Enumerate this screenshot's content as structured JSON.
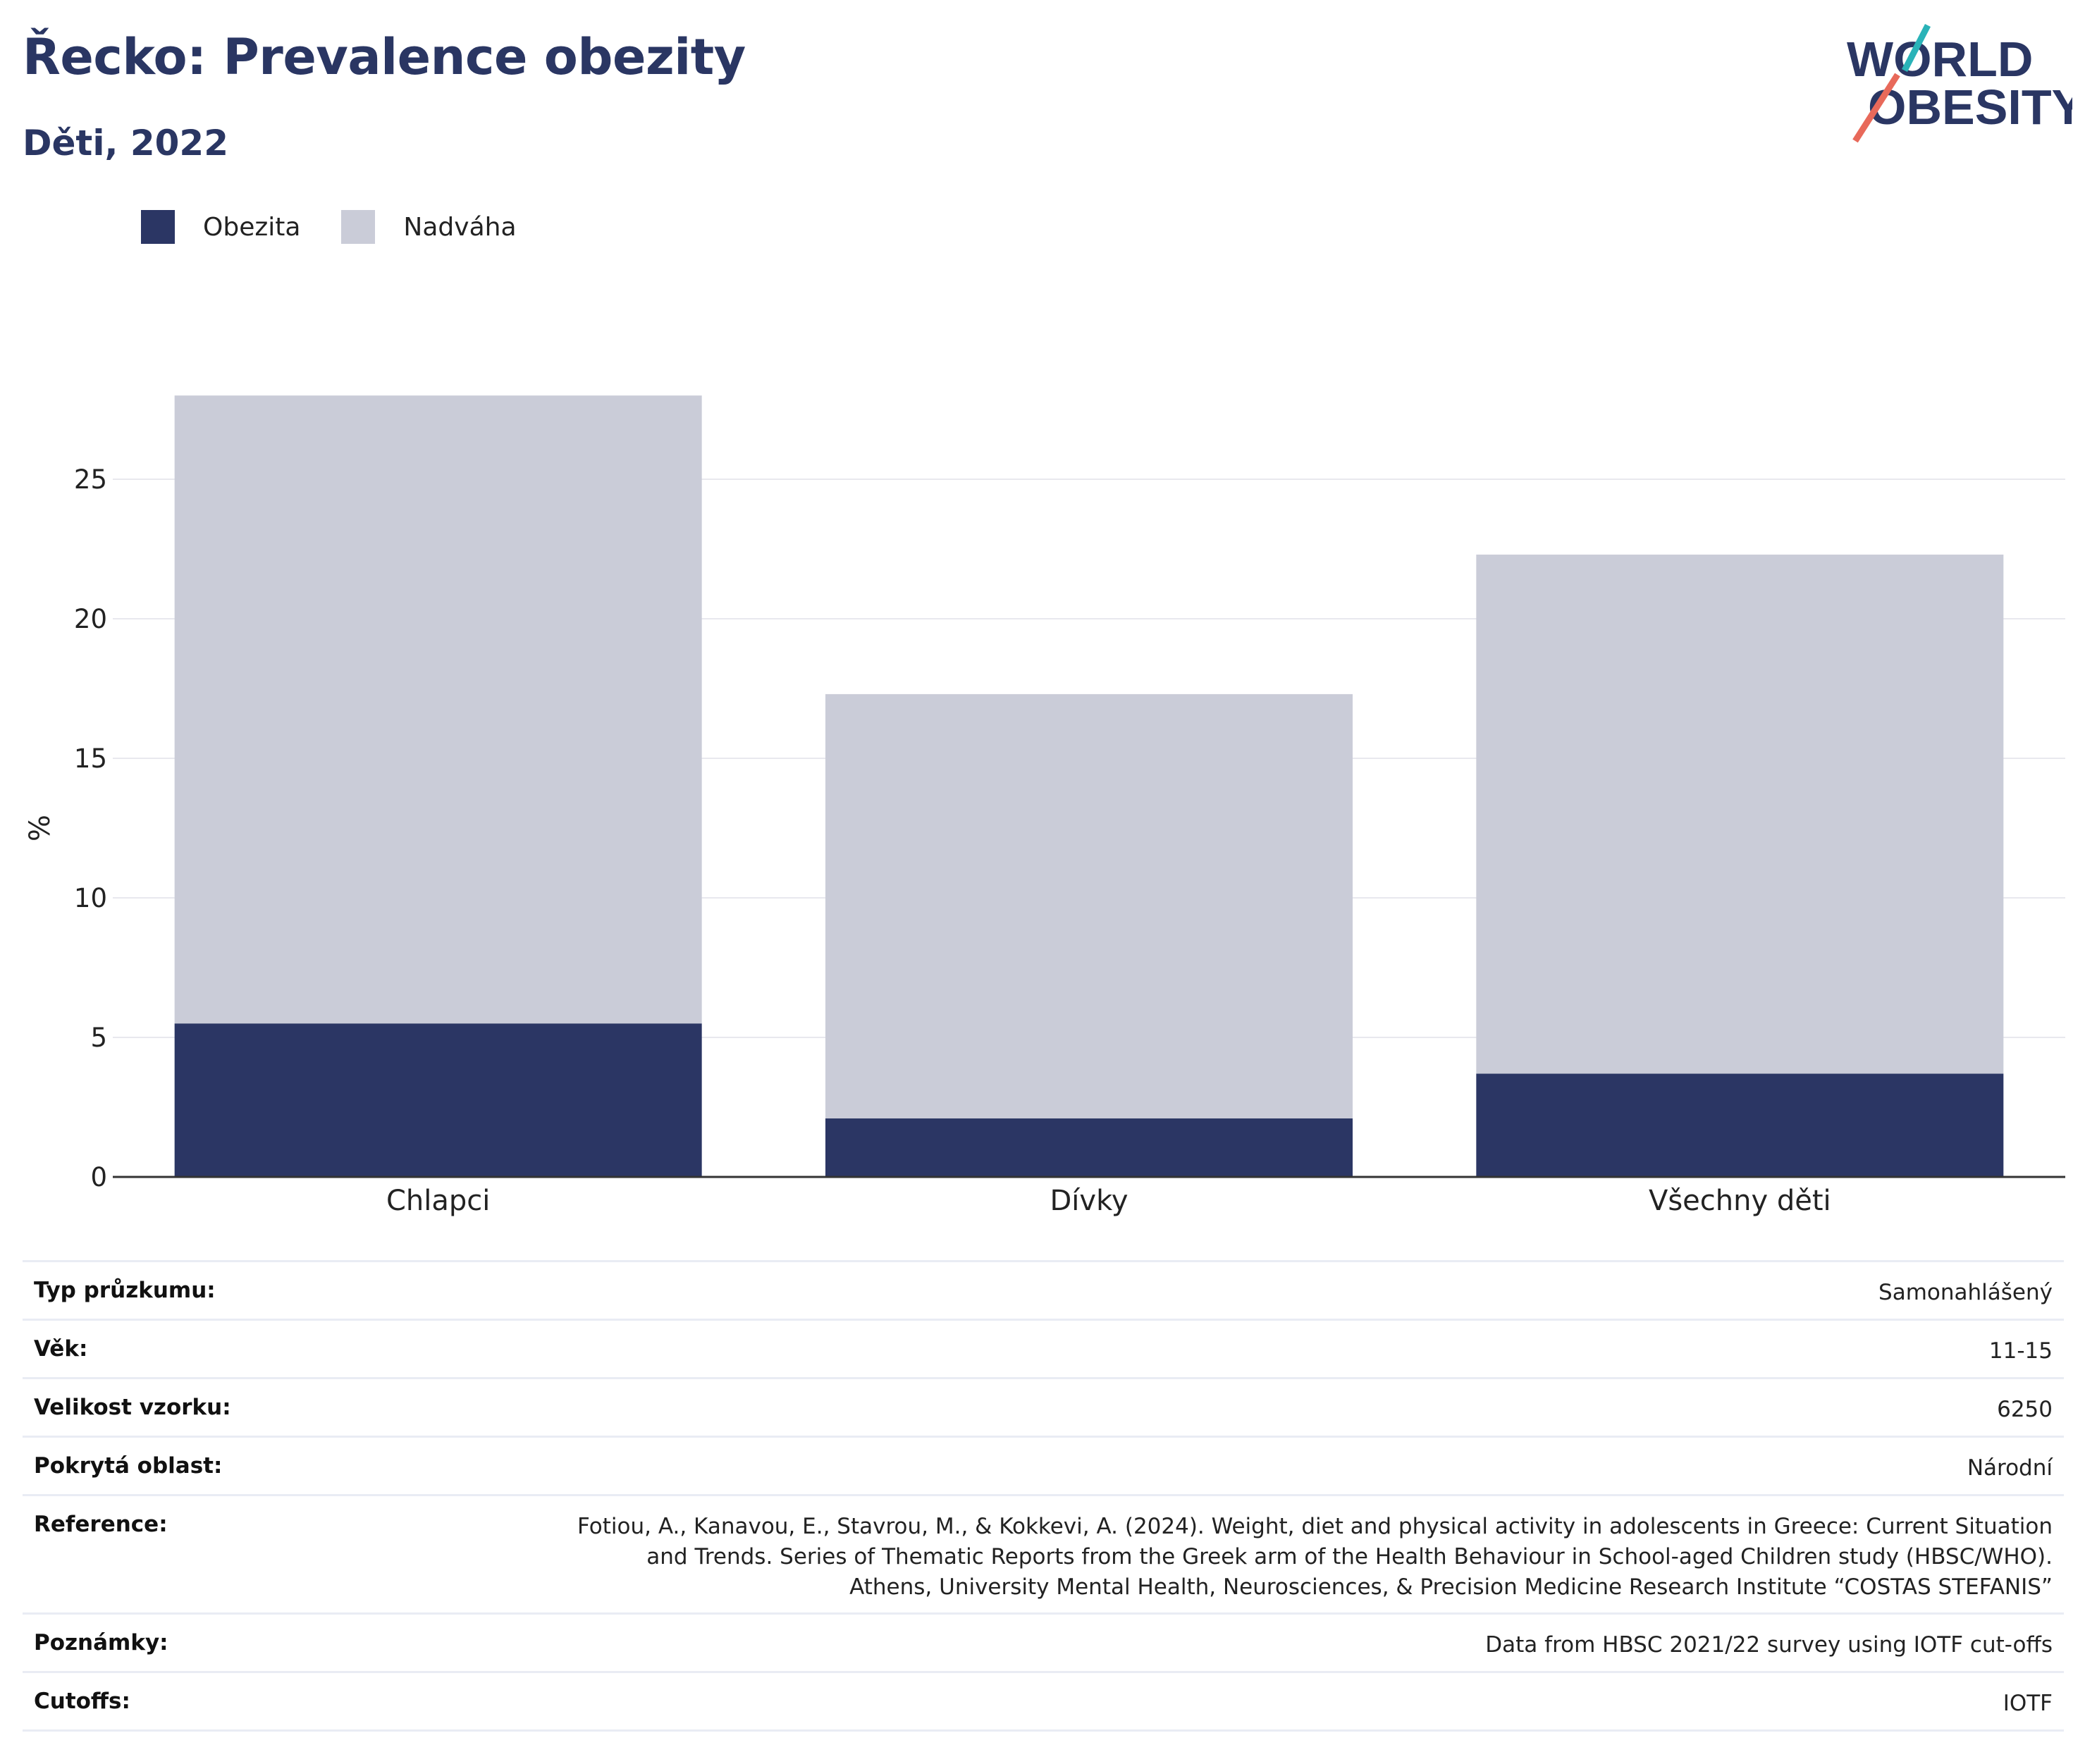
{
  "header": {
    "title": "Řecko: Prevalence obezity",
    "subtitle": "Děti, 2022"
  },
  "logo": {
    "line1": "WORLD",
    "line2": "OBESITY"
  },
  "colors": {
    "obesity": "#2b3664",
    "overweight": "#caccd8",
    "title": "#2a3663",
    "gridline": "#e8e8ee",
    "accent_teal": "#2ab3b8",
    "accent_coral": "#e8695a"
  },
  "legend": {
    "items": [
      {
        "label": "Obezita"
      },
      {
        "label": "Nadváha"
      }
    ]
  },
  "chart_data": {
    "type": "bar",
    "stacked": true,
    "categories": [
      "Chlapci",
      "Dívky",
      "Všechny děti"
    ],
    "series": [
      {
        "name": "Obezita",
        "values": [
          5.5,
          2.1,
          3.7
        ]
      },
      {
        "name": "Nadváha",
        "values": [
          22.5,
          15.2,
          18.6
        ]
      }
    ],
    "totals": [
      28.0,
      17.3,
      22.3
    ],
    "ylabel": "%",
    "yticks": [
      0,
      5,
      10,
      15,
      20,
      25
    ],
    "ylim": [
      0,
      30
    ],
    "grid": true,
    "legend_position": "top-left"
  },
  "info": {
    "rows": [
      {
        "label": "Typ průzkumu:",
        "value": "Samonahlášený"
      },
      {
        "label": "Věk:",
        "value": "11-15"
      },
      {
        "label": "Velikost vzorku:",
        "value": "6250"
      },
      {
        "label": "Pokrytá oblast:",
        "value": "Národní"
      },
      {
        "label": "Reference:",
        "value": "Fotiou, A., Kanavou, E., Stavrou, M., & Kokkevi, A. (2024). Weight, diet and physical activity in adolescents in Greece: Current Situation and Trends. Series of Thematic Reports from the Greek arm of the Health Behaviour in School-aged Children study (HBSC/WHO). Athens, University Mental Health, Neurosciences, & Precision Medicine Research Institute “COSTAS STEFANIS”"
      },
      {
        "label": "Poznámky:",
        "value": "Data from HBSC 2021/22 survey using IOTF cut-offs"
      },
      {
        "label": "Cutoffs:",
        "value": "IOTF"
      }
    ]
  }
}
